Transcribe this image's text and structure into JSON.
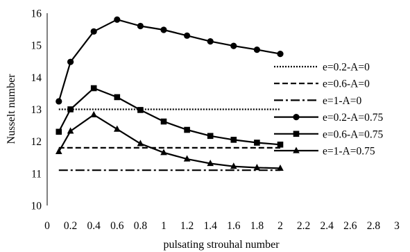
{
  "chart_data": {
    "type": "line",
    "xlabel": "pulsating strouhal number",
    "ylabel": "Nusselt number",
    "xlim": [
      0,
      3
    ],
    "ylim": [
      10,
      16
    ],
    "x_ticks": [
      "0",
      "0.2",
      "0.4",
      "0.6",
      "0.8",
      "1",
      "1.2",
      "1.4",
      "1.6",
      "1.8",
      "2",
      "2.2",
      "2.4",
      "2.6",
      "2.8",
      "3"
    ],
    "y_ticks": [
      "10",
      "11",
      "12",
      "13",
      "14",
      "15",
      "16"
    ],
    "x_tick_values": [
      0,
      0.2,
      0.4,
      0.6,
      0.8,
      1,
      1.2,
      1.4,
      1.6,
      1.8,
      2,
      2.2,
      2.4,
      2.6,
      2.8,
      3
    ],
    "y_tick_values": [
      10,
      11,
      12,
      13,
      14,
      15,
      16
    ],
    "grid": false,
    "legend_position": "right",
    "series": [
      {
        "name": "e=0.2-A=0",
        "style": "dotted",
        "marker": "none",
        "x": [
          0.1,
          2.0
        ],
        "y": [
          13.0,
          13.0
        ]
      },
      {
        "name": "e=0.6-A=0",
        "style": "dashed",
        "marker": "none",
        "x": [
          0.1,
          2.0
        ],
        "y": [
          11.8,
          11.8
        ]
      },
      {
        "name": "e=1-A=0",
        "style": "dashdot",
        "marker": "none",
        "x": [
          0.1,
          2.0
        ],
        "y": [
          11.1,
          11.1
        ]
      },
      {
        "name": "e=0.2-A=0.75",
        "style": "solid",
        "marker": "circle",
        "x": [
          0.1,
          0.2,
          0.4,
          0.6,
          0.8,
          1.0,
          1.2,
          1.4,
          1.6,
          1.8,
          2.0
        ],
        "y": [
          13.25,
          14.48,
          15.43,
          15.8,
          15.6,
          15.48,
          15.3,
          15.12,
          14.98,
          14.86,
          14.73
        ]
      },
      {
        "name": "e=0.6-A=0.75",
        "style": "solid",
        "marker": "square",
        "x": [
          0.1,
          0.2,
          0.4,
          0.6,
          0.8,
          1.0,
          1.2,
          1.4,
          1.6,
          1.8,
          2.0
        ],
        "y": [
          12.3,
          13.0,
          13.66,
          13.38,
          12.98,
          12.62,
          12.36,
          12.17,
          12.05,
          11.96,
          11.9
        ]
      },
      {
        "name": "e=1-A=0.75",
        "style": "solid",
        "marker": "triangle",
        "x": [
          0.1,
          0.2,
          0.4,
          0.6,
          0.8,
          1.0,
          1.2,
          1.4,
          1.6,
          1.8,
          2.0
        ],
        "y": [
          11.68,
          12.32,
          12.83,
          12.38,
          11.93,
          11.65,
          11.45,
          11.31,
          11.22,
          11.18,
          11.16
        ]
      }
    ]
  }
}
